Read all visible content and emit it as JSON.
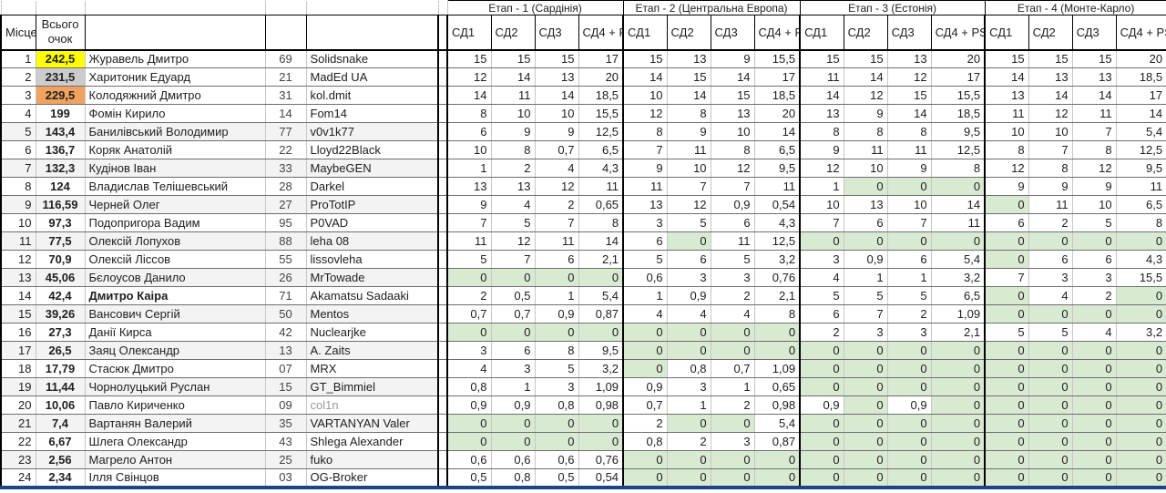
{
  "header": {
    "place_label": "Місце",
    "total_label": "Всього очок",
    "stages": [
      "Етап - 1 (Сардінія)",
      "Етап - 2 (Центральна Европа)",
      "Етап - 3 (Естонія)",
      "Етап - 4 (Монте-Карло)"
    ],
    "stage_subcols": [
      "СД1",
      "СД2",
      "СД3",
      "СД4 + PS"
    ]
  },
  "colors": {
    "gold": "#ffff00",
    "silver": "#cccccc",
    "bronze": "#f0a35e",
    "zero_highlight": "#d9ead3",
    "row_band": "#f3f3f3",
    "bottom_border": "#1c4587"
  },
  "rows": [
    {
      "place": "1",
      "total": "242,5",
      "medal": "gold",
      "name": "Журавель Дмитро",
      "num": "69",
      "nick": "Solidsnake",
      "scores": [
        "15",
        "15",
        "15",
        "17",
        "15",
        "13",
        "9",
        "15,5",
        "15",
        "15",
        "13",
        "20",
        "15",
        "15",
        "15",
        "20"
      ]
    },
    {
      "place": "2",
      "total": "231,5",
      "medal": "silver",
      "name": "Харитоник Едуард",
      "num": "21",
      "nick": "MadEd UA",
      "scores": [
        "12",
        "14",
        "13",
        "20",
        "14",
        "15",
        "14",
        "17",
        "11",
        "14",
        "12",
        "17",
        "14",
        "13",
        "13",
        "18,5"
      ]
    },
    {
      "place": "3",
      "total": "229,5",
      "medal": "bronze",
      "name": "Колодяжний Дмитро",
      "num": "31",
      "nick": "kol.dmit",
      "scores": [
        "14",
        "11",
        "14",
        "18,5",
        "10",
        "14",
        "15",
        "18,5",
        "14",
        "12",
        "15",
        "15,5",
        "13",
        "14",
        "14",
        "17"
      ]
    },
    {
      "place": "4",
      "total": "199",
      "name": "Фомін Кирило",
      "num": "14",
      "nick": "Fom14",
      "scores": [
        "8",
        "10",
        "10",
        "15,5",
        "12",
        "8",
        "13",
        "20",
        "13",
        "9",
        "14",
        "18,5",
        "11",
        "12",
        "11",
        "14"
      ]
    },
    {
      "place": "5",
      "total": "143,4",
      "name": "Банилівський Володимир",
      "num": "77",
      "nick": "v0v1k77",
      "scores": [
        "6",
        "9",
        "9",
        "12,5",
        "8",
        "9",
        "10",
        "14",
        "8",
        "8",
        "8",
        "9,5",
        "10",
        "10",
        "7",
        "5,4"
      ]
    },
    {
      "place": "6",
      "total": "136,7",
      "name": "Коряк Анатолій",
      "num": "22",
      "nick": "Lloyd22Black",
      "scores": [
        "10",
        "8",
        "0,7",
        "6,5",
        "7",
        "11",
        "8",
        "6,5",
        "9",
        "11",
        "11",
        "12,5",
        "8",
        "7",
        "8",
        "12,5"
      ]
    },
    {
      "place": "7",
      "total": "132,3",
      "name": "Кудінов Іван",
      "num": "33",
      "nick": "MaybeGEN",
      "scores": [
        "1",
        "2",
        "4",
        "4,3",
        "9",
        "10",
        "12",
        "9,5",
        "12",
        "10",
        "9",
        "8",
        "12",
        "8",
        "12",
        "9,5"
      ]
    },
    {
      "place": "8",
      "total": "124",
      "name": "Владислав Телішевський",
      "num": "28",
      "nick": "Darkel",
      "scores": [
        "13",
        "13",
        "12",
        "11",
        "11",
        "7",
        "7",
        "11",
        "1",
        "0",
        "0",
        "0",
        "9",
        "9",
        "9",
        "11"
      ]
    },
    {
      "place": "9",
      "total": "116,59",
      "name": "Черней Олег",
      "num": "27",
      "nick": "ProTotIP",
      "scores": [
        "9",
        "4",
        "2",
        "0,65",
        "13",
        "12",
        "0,9",
        "0,54",
        "10",
        "13",
        "10",
        "14",
        "0",
        "11",
        "10",
        "6,5"
      ]
    },
    {
      "place": "10",
      "total": "97,3",
      "name": "Подопригора Вадим",
      "num": "95",
      "nick": "P0VAD",
      "scores": [
        "7",
        "5",
        "7",
        "8",
        "3",
        "5",
        "6",
        "4,3",
        "7",
        "6",
        "7",
        "11",
        "6",
        "2",
        "5",
        "8"
      ]
    },
    {
      "place": "11",
      "total": "77,5",
      "name": "Олексій Лопухов",
      "num": "88",
      "nick": "leha 08",
      "scores": [
        "11",
        "12",
        "11",
        "14",
        "6",
        "0",
        "11",
        "12,5",
        "0",
        "0",
        "0",
        "0",
        "0",
        "0",
        "0",
        "0"
      ]
    },
    {
      "place": "12",
      "total": "70,9",
      "name": "Олексій Ліссов",
      "num": "55",
      "nick": "lissovleha",
      "scores": [
        "5",
        "7",
        "6",
        "2,1",
        "5",
        "6",
        "5",
        "3,2",
        "3",
        "0,9",
        "6",
        "5,4",
        "0",
        "6",
        "6",
        "4,3"
      ]
    },
    {
      "place": "13",
      "total": "45,06",
      "name": "Бєлоусов Данило",
      "num": "26",
      "nick": "MrTowade",
      "scores": [
        "0",
        "0",
        "0",
        "0",
        "0,6",
        "3",
        "3",
        "0,76",
        "4",
        "1",
        "1",
        "3,2",
        "7",
        "3",
        "3",
        "15,5"
      ]
    },
    {
      "place": "14",
      "total": "42,4",
      "name": "Дмитро Каіра",
      "num": "71",
      "nick": "Akamatsu Sadaaki",
      "name_bold": true,
      "scores": [
        "2",
        "0,5",
        "1",
        "5,4",
        "1",
        "0,9",
        "2",
        "2,1",
        "5",
        "5",
        "5",
        "6,5",
        "0",
        "4",
        "2",
        "0"
      ]
    },
    {
      "place": "15",
      "total": "39,26",
      "name": "Вансович Сергій",
      "num": "50",
      "nick": "Mentos",
      "scores": [
        "0,7",
        "0,7",
        "0,9",
        "0,87",
        "4",
        "4",
        "4",
        "8",
        "6",
        "7",
        "2",
        "1,09",
        "0",
        "0",
        "0",
        "0"
      ]
    },
    {
      "place": "16",
      "total": "27,3",
      "name": "Данії Кирса",
      "num": "42",
      "nick": "Nuclearjke",
      "scores": [
        "0",
        "0",
        "0",
        "0",
        "0",
        "0",
        "0",
        "0",
        "2",
        "3",
        "3",
        "2,1",
        "5",
        "5",
        "4",
        "3,2"
      ]
    },
    {
      "place": "17",
      "total": "26,5",
      "name": "Заяц Олександр",
      "num": "13",
      "nick": "A. Zaits",
      "scores": [
        "3",
        "6",
        "8",
        "9,5",
        "0",
        "0",
        "0",
        "0",
        "0",
        "0",
        "0",
        "0",
        "0",
        "0",
        "0",
        "0"
      ]
    },
    {
      "place": "18",
      "total": "17,79",
      "name": "Стасюк Дмитро",
      "num": "07",
      "nick": "MRX",
      "scores": [
        "4",
        "3",
        "5",
        "3,2",
        "0",
        "0,8",
        "0,7",
        "1,09",
        "0",
        "0",
        "0",
        "0",
        "0",
        "0",
        "0",
        "0"
      ]
    },
    {
      "place": "19",
      "total": "11,44",
      "name": "Чорнолуцький Руслан",
      "num": "15",
      "nick": "GT_Bimmiel",
      "scores": [
        "0,8",
        "1",
        "3",
        "1,09",
        "0,9",
        "3",
        "1",
        "0,65",
        "0",
        "0",
        "0",
        "0",
        "0",
        "0",
        "0",
        "0"
      ]
    },
    {
      "place": "20",
      "total": "10,06",
      "name": "Павло Кириченко",
      "num": "09",
      "nick": "col1n",
      "nick_muted": true,
      "scores": [
        "0,9",
        "0,9",
        "0,8",
        "0,98",
        "0,7",
        "1",
        "2",
        "0,98",
        "0,9",
        "0",
        "0,9",
        "0",
        "0",
        "0",
        "0",
        "0"
      ]
    },
    {
      "place": "21",
      "total": "7,4",
      "name": "Вартанян Валерий",
      "num": "35",
      "nick": "VARTANYAN Valer",
      "scores": [
        "0",
        "0",
        "0",
        "0",
        "2",
        "0",
        "0",
        "5,4",
        "0",
        "0",
        "0",
        "0",
        "0",
        "0",
        "0",
        "0"
      ]
    },
    {
      "place": "22",
      "total": "6,67",
      "name": "Шлега Олександр",
      "num": "43",
      "nick": "Shlega Alexander",
      "scores": [
        "0",
        "0",
        "0",
        "0",
        "0,8",
        "2",
        "3",
        "0,87",
        "0",
        "0",
        "0",
        "0",
        "0",
        "0",
        "0",
        "0"
      ]
    },
    {
      "place": "23",
      "total": "2,56",
      "name": "Магрело Антон",
      "num": "25",
      "nick": "fuko",
      "scores": [
        "0,6",
        "0,6",
        "0,6",
        "0,76",
        "0",
        "0",
        "0",
        "0",
        "0",
        "0",
        "0",
        "0",
        "0",
        "0",
        "0",
        "0"
      ]
    },
    {
      "place": "24",
      "total": "2,34",
      "name": "Ілля Свінцов",
      "num": "03",
      "nick": "OG-Broker",
      "scores": [
        "0,5",
        "0,8",
        "0,5",
        "0,54",
        "0",
        "0",
        "0",
        "0",
        "0",
        "0",
        "0",
        "0",
        "0",
        "0",
        "0",
        "0"
      ]
    }
  ]
}
